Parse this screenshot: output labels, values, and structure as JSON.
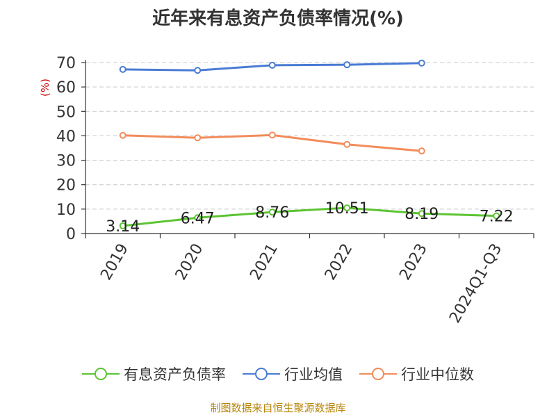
{
  "title": "近年来有息资产负债率情况(%)",
  "source": "制图数据来自恒生聚源数据库",
  "chart_data": {
    "type": "line",
    "title": "近年来有息资产负债率情况(%)",
    "ylabel": "(%)",
    "xlabel": "",
    "ylim": [
      0,
      70
    ],
    "yticks": [
      0,
      10,
      20,
      30,
      40,
      50,
      60,
      70
    ],
    "grid": true,
    "legend_position": "bottom",
    "categories": [
      "2019",
      "2020",
      "2021",
      "2022",
      "2023",
      "2024Q1-Q3"
    ],
    "series": [
      {
        "name": "有息资产负债率",
        "color": "#5cc433",
        "values": [
          3.14,
          6.47,
          8.76,
          10.51,
          8.19,
          7.22
        ],
        "labels": [
          "3.14",
          "6.47",
          "8.76",
          "10.51",
          "8.19",
          "7.22"
        ]
      },
      {
        "name": "行业均值",
        "color": "#4a7bd4",
        "values": [
          67.2,
          66.8,
          68.9,
          69.1,
          69.8,
          null
        ]
      },
      {
        "name": "行业中位数",
        "color": "#f28c5a",
        "values": [
          40.2,
          39.2,
          40.3,
          36.5,
          33.8,
          null
        ]
      }
    ]
  }
}
